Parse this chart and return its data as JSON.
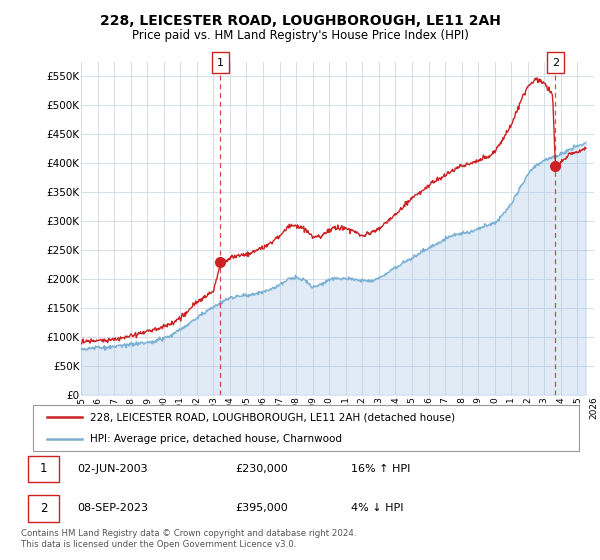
{
  "title": "228, LEICESTER ROAD, LOUGHBOROUGH, LE11 2AH",
  "subtitle": "Price paid vs. HM Land Registry's House Price Index (HPI)",
  "legend_line1": "228, LEICESTER ROAD, LOUGHBOROUGH, LE11 2AH (detached house)",
  "legend_line2": "HPI: Average price, detached house, Charnwood",
  "annotation1_date": "02-JUN-2003",
  "annotation1_price": "£230,000",
  "annotation1_hpi": "16% ↑ HPI",
  "annotation2_date": "08-SEP-2023",
  "annotation2_price": "£395,000",
  "annotation2_hpi": "4% ↓ HPI",
  "footnote1": "Contains HM Land Registry data © Crown copyright and database right 2024.",
  "footnote2": "This data is licensed under the Open Government Licence v3.0.",
  "hpi_color": "#a8c8e8",
  "hpi_line_color": "#7ab0d4",
  "price_color": "#cc2222",
  "annotation_color": "#cc2222",
  "grid_color": "#d0d8e8",
  "ylim": [
    0,
    575000
  ],
  "yticks": [
    0,
    50000,
    100000,
    150000,
    200000,
    250000,
    300000,
    350000,
    400000,
    450000,
    500000,
    550000
  ],
  "sale1_x": 2003.42,
  "sale1_y": 230000,
  "sale2_x": 2023.67,
  "sale2_y": 395000,
  "xmin": 1995.0,
  "xmax": 2026.0
}
